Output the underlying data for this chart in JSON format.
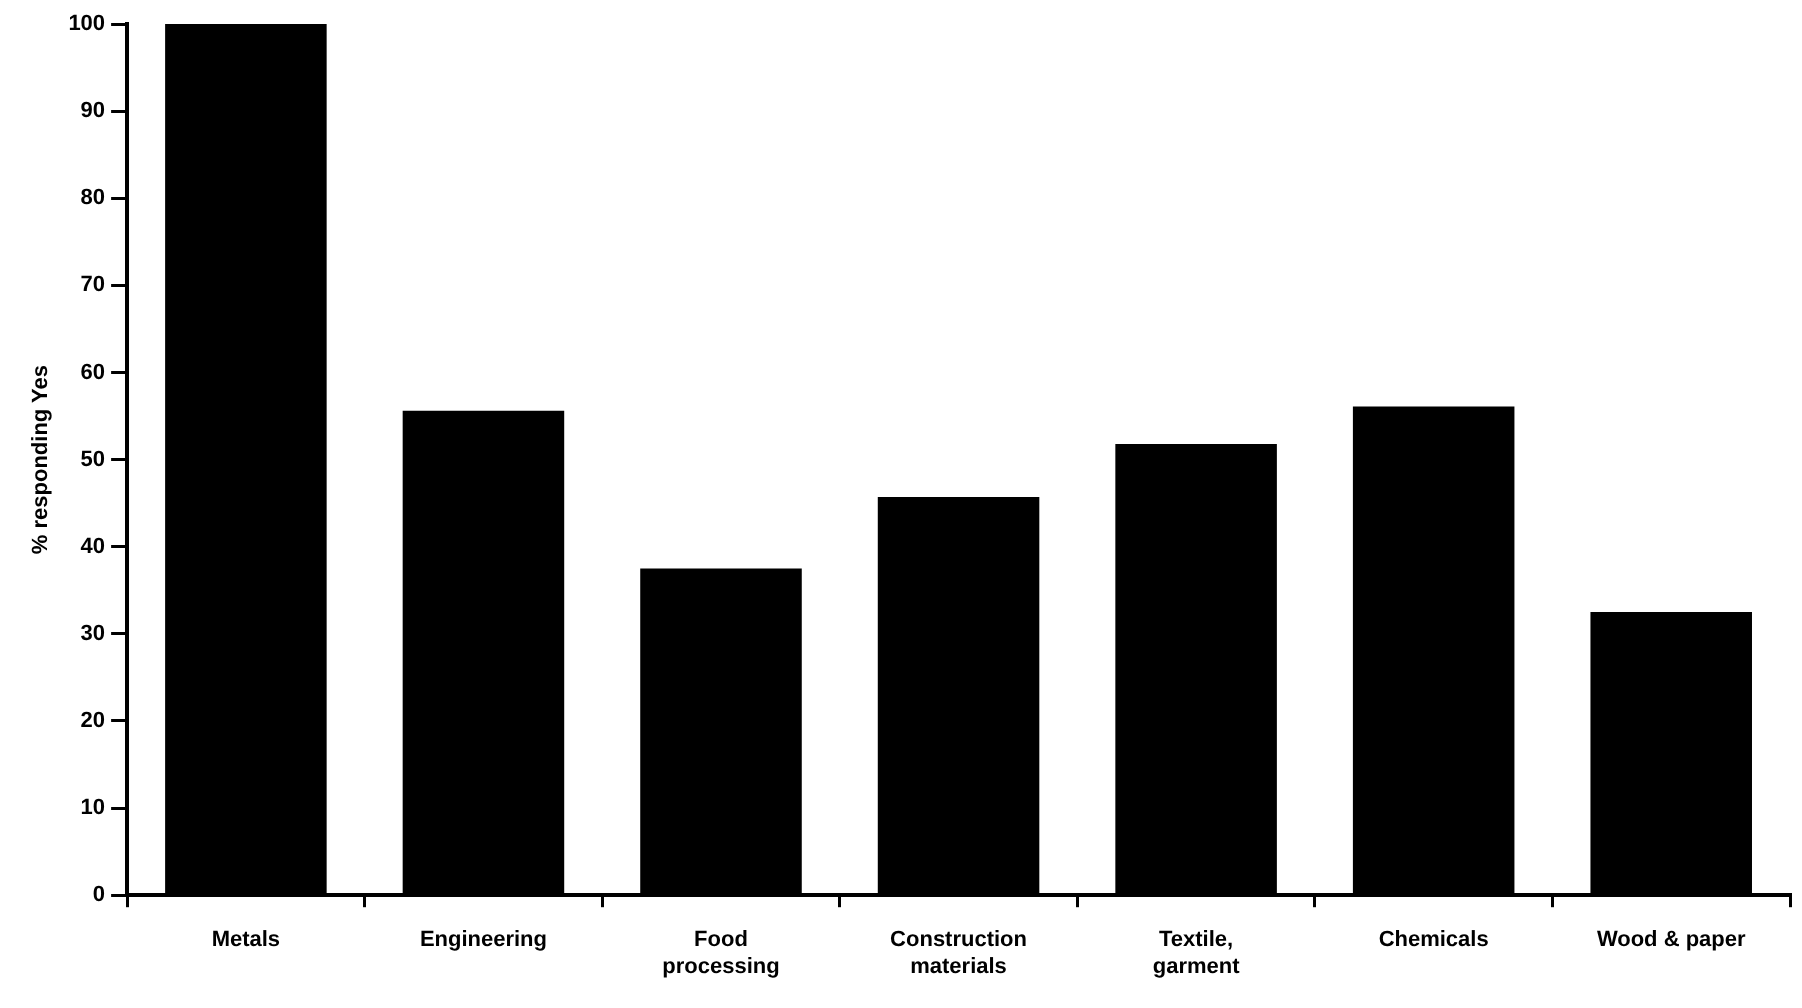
{
  "chart_data": {
    "type": "bar",
    "ylabel": "% responding Yes",
    "categories": [
      "Metals",
      "Engineering",
      "Food processing",
      "Construction materials",
      "Textile, garment",
      "Chemicals",
      "Wood & paper"
    ],
    "values": [
      100,
      55.6,
      37.5,
      45.7,
      51.8,
      56.1,
      32.5
    ],
    "color": "#000000",
    "ylim": [
      0,
      100
    ],
    "yticks": [
      0,
      10,
      20,
      30,
      40,
      50,
      60,
      70,
      80,
      90,
      100
    ],
    "grid": false,
    "legend": false
  }
}
